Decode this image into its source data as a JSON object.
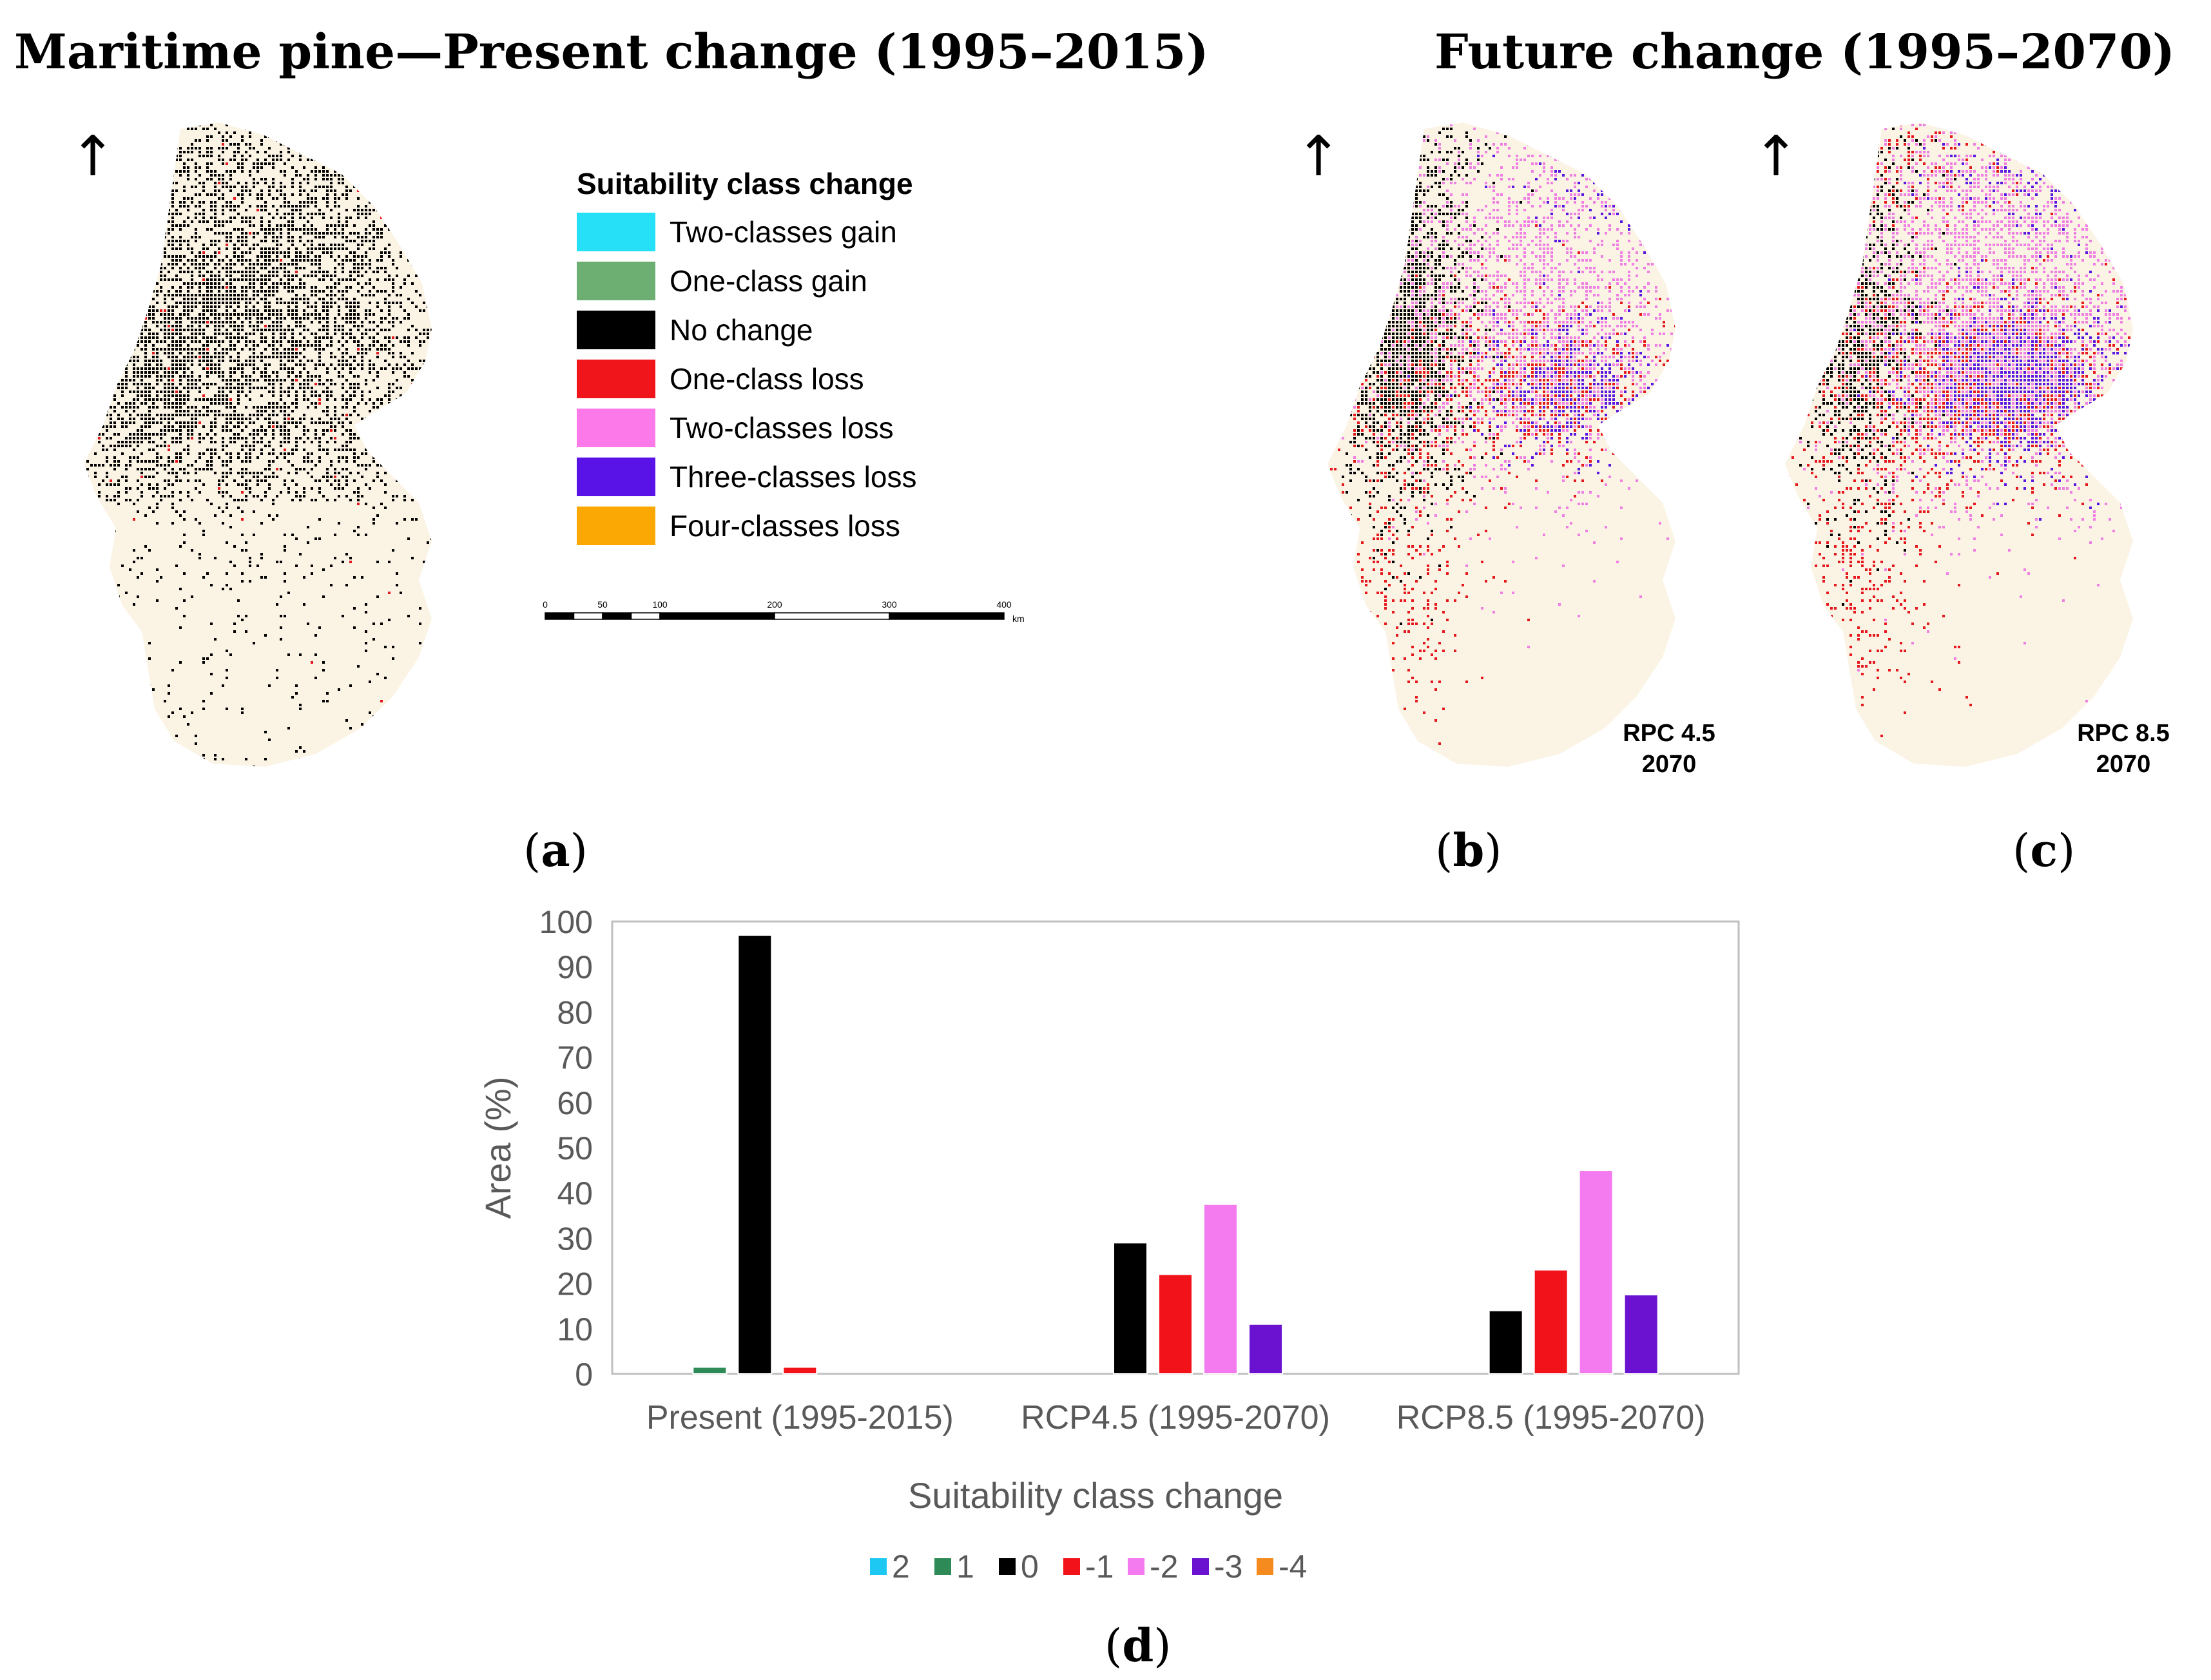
{
  "figure": {
    "title_left": "Maritime pine—Present change (1995–2015)",
    "title_right": "Future change (1995–2070)",
    "north_arrow": "↑",
    "panels": [
      {
        "open": "(",
        "letter": "a",
        "close": ")"
      },
      {
        "open": "(",
        "letter": "b",
        "close": ")"
      },
      {
        "open": "(",
        "letter": "c",
        "close": ")"
      },
      {
        "open": "(",
        "letter": "d",
        "close": ")"
      }
    ]
  },
  "map_legend": {
    "heading": "Suitability class change",
    "items": [
      {
        "label": "Two-classes gain",
        "color": "#26E0F8"
      },
      {
        "label": "One-class gain",
        "color": "#6DAF72"
      },
      {
        "label": "No change",
        "color": "#000000"
      },
      {
        "label": "One-class loss",
        "color": "#F0141B"
      },
      {
        "label": "Two-classes loss",
        "color": "#FB79E8"
      },
      {
        "label": "Three-classes loss",
        "color": "#5A13E6"
      },
      {
        "label": "Four-classes loss",
        "color": "#FBA804"
      }
    ]
  },
  "scale_bar": {
    "ticks": [
      "0",
      "50",
      "100",
      "200",
      "300",
      "400"
    ],
    "unit": "km"
  },
  "map_labels": {
    "b": {
      "line1": "RPC 4.5",
      "line2": "2070"
    },
    "c": {
      "line1": "RPC 8.5",
      "line2": "2070"
    }
  },
  "colors": {
    "land": "#FBF4E5",
    "no_change": "#000000",
    "one_loss": "#E5181E",
    "two_loss": "#F07FE3",
    "three_loss": "#5A17E0"
  },
  "chart_data": {
    "type": "bar",
    "categories": [
      "Present (1995-2015)",
      "RCP4.5 (1995-2070)",
      "RCP8.5 (1995-2070)"
    ],
    "series": [
      {
        "name": "2",
        "color": "#1DC8F2",
        "values": [
          0,
          0,
          0
        ]
      },
      {
        "name": "1",
        "color": "#2E8B57",
        "values": [
          1.5,
          0,
          0
        ]
      },
      {
        "name": "0",
        "color": "#000000",
        "values": [
          97,
          29,
          14
        ]
      },
      {
        "name": "-1",
        "color": "#F2131A",
        "values": [
          1.5,
          22,
          23
        ]
      },
      {
        "name": "-2",
        "color": "#F47AF0",
        "values": [
          0,
          37.5,
          45
        ]
      },
      {
        "name": "-3",
        "color": "#6A12CF",
        "values": [
          0,
          11,
          17.5
        ]
      },
      {
        "name": "-4",
        "color": "#F58A1F",
        "values": [
          0,
          0,
          0
        ]
      }
    ],
    "title": "",
    "xlabel": "Suitability class change",
    "ylabel": "Area (%)",
    "ylim": [
      0,
      100
    ],
    "yticks": [
      0,
      10,
      20,
      30,
      40,
      50,
      60,
      70,
      80,
      90,
      100
    ],
    "legend_position": "bottom"
  }
}
